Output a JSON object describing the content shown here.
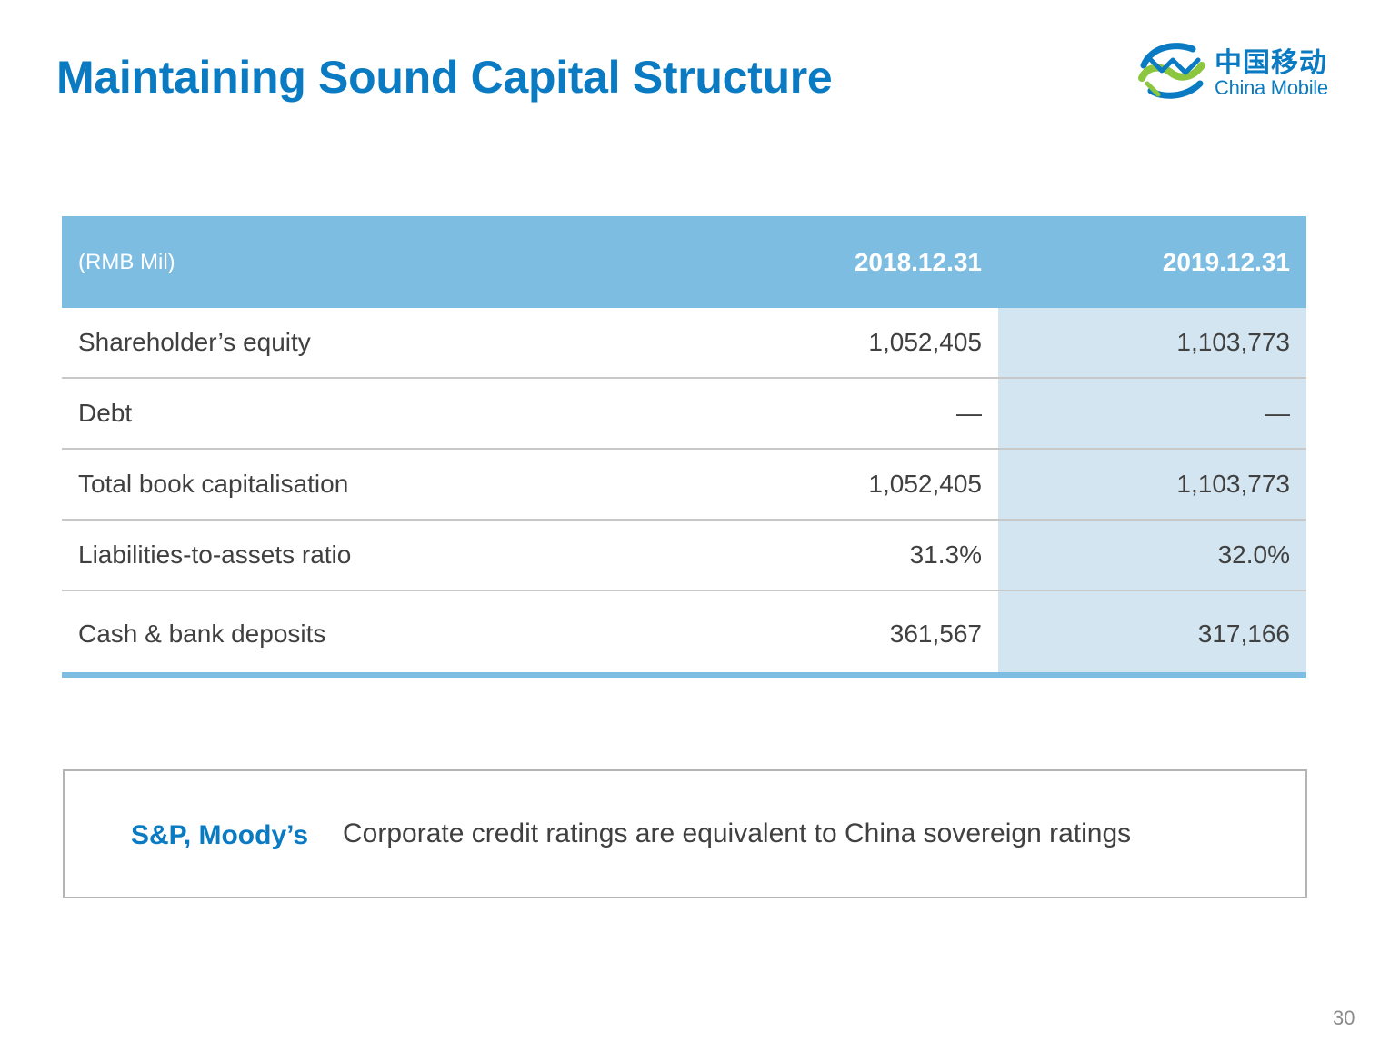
{
  "page": {
    "title": "Maintaining Sound Capital Structure",
    "page_number": "30"
  },
  "logo": {
    "chinese_name": "中国移动",
    "english_name": "China Mobile"
  },
  "table": {
    "headers": [
      "(RMB Mil)",
      "2018.12.31",
      "2019.12.31"
    ],
    "rows": [
      [
        "Shareholder’s equity",
        "1,052,405",
        "1,103,773"
      ],
      [
        "Debt",
        "—",
        "—"
      ],
      [
        "Total book capitalisation",
        "1,052,405",
        "1,103,773"
      ],
      [
        "Liabilities-to-assets ratio",
        "31.3%",
        "32.0%"
      ],
      [
        "Cash & bank deposits",
        "361,567",
        "317,166"
      ]
    ]
  },
  "note": {
    "agencies": "S&P, Moody’s",
    "text": "Corporate credit ratings are equivalent to China sovereign ratings"
  },
  "colors": {
    "brand_blue": "#0a7bc2",
    "header_fill": "#7dbde2",
    "highlight_column": "#d2e5f0",
    "logo_green": "#8cc63f"
  }
}
